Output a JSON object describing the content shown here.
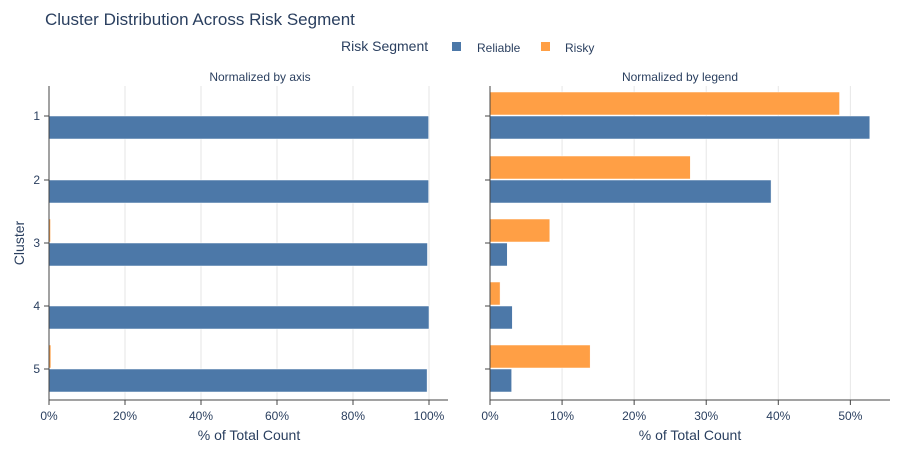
{
  "chart_data": {
    "type": "bar",
    "orientation": "horizontal",
    "title": "Cluster Distribution Across Risk Segment",
    "legend": {
      "title": "Risk Segment",
      "placement": "top",
      "entries": [
        {
          "name": "Reliable",
          "color": "#4C78A8"
        },
        {
          "name": "Risky",
          "color": "#FF9F45"
        }
      ]
    },
    "y_axis_title": "Cluster",
    "categories": [
      "1",
      "2",
      "3",
      "4",
      "5"
    ],
    "panels": [
      {
        "title": "Normalized by axis",
        "xlabel": "% of Total Count",
        "xlim": [
          0,
          105
        ],
        "xticks": [
          0,
          20,
          40,
          60,
          80,
          100
        ],
        "xtick_labels": [
          "0%",
          "20%",
          "40%",
          "60%",
          "80%",
          "100%"
        ],
        "grid": true,
        "series": [
          {
            "name": "Reliable",
            "values": [
              99.9,
              99.9,
              99.6,
              100.0,
              99.5
            ]
          },
          {
            "name": "Risky",
            "values": [
              0.1,
              0.1,
              0.4,
              0.0,
              0.5
            ]
          }
        ]
      },
      {
        "title": "Normalized by legend",
        "xlabel": "% of Total Count",
        "xlim": [
          0,
          55.5
        ],
        "xticks": [
          0,
          10,
          20,
          30,
          40,
          50
        ],
        "xtick_labels": [
          "0%",
          "10%",
          "20%",
          "30%",
          "40%",
          "50%"
        ],
        "grid": true,
        "series": [
          {
            "name": "Reliable",
            "values": [
              52.7,
              39.0,
              2.4,
              3.1,
              3.0
            ]
          },
          {
            "name": "Risky",
            "values": [
              48.5,
              27.8,
              8.3,
              1.4,
              13.9
            ]
          }
        ]
      }
    ]
  }
}
